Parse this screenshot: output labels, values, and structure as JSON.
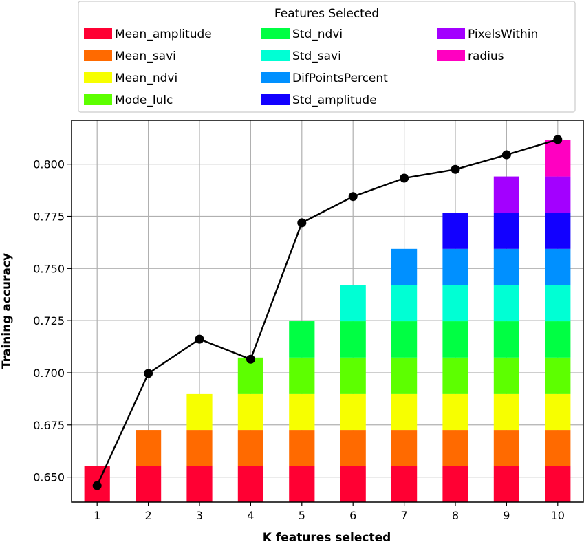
{
  "chart_data": {
    "type": "bar",
    "stacked": true,
    "xlabel": "K features selected",
    "ylabel": "Training accuracy",
    "x": [
      1,
      2,
      3,
      4,
      5,
      6,
      7,
      8,
      9,
      10
    ],
    "ylim": [
      0.638,
      0.821
    ],
    "yticks": [
      0.65,
      0.675,
      0.7,
      0.725,
      0.75,
      0.775,
      0.8
    ],
    "ytick_labels": [
      "0.650",
      "0.675",
      "0.700",
      "0.725",
      "0.750",
      "0.775",
      "0.800"
    ],
    "grid": true,
    "legend": {
      "title": "Features Selected",
      "placement": "top-center",
      "columns": 3
    },
    "features": [
      {
        "name": "Mean_amplitude",
        "color": "#ff0033",
        "top": 0.6553
      },
      {
        "name": "Mean_savi",
        "color": "#ff6a00",
        "top": 0.6726
      },
      {
        "name": "Mean_ndvi",
        "color": "#f7ff00",
        "top": 0.6898
      },
      {
        "name": "Mode_lulc",
        "color": "#5dff00",
        "top": 0.7073
      },
      {
        "name": "Std_ndvi",
        "color": "#00ff43",
        "top": 0.7247
      },
      {
        "name": "Std_savi",
        "color": "#00ffd4",
        "top": 0.742
      },
      {
        "name": "DifPointsPercent",
        "color": "#0090ff",
        "top": 0.7594
      },
      {
        "name": "Std_amplitude",
        "color": "#1200ff",
        "top": 0.7767
      },
      {
        "name": "PixelsWithin",
        "color": "#a300ff",
        "top": 0.7941
      },
      {
        "name": "radius",
        "color": "#ff00c1",
        "top": 0.8115
      }
    ],
    "line": {
      "color": "#000000",
      "values": [
        0.6459,
        0.6997,
        0.7161,
        0.7065,
        0.7719,
        0.7845,
        0.7933,
        0.7975,
        0.8045,
        0.8118
      ]
    }
  }
}
